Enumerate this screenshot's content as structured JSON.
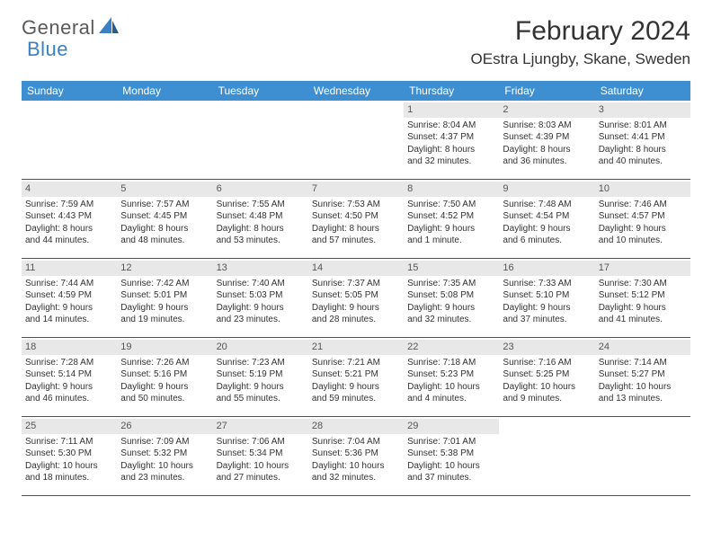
{
  "logo": {
    "text1": "General",
    "text2": "Blue"
  },
  "title": "February 2024",
  "location": "OEstra Ljungby, Skane, Sweden",
  "colors": {
    "header_bg": "#3d8fd1",
    "header_text": "#ffffff",
    "row_border": "#2a5a8a",
    "daynum_bg": "#e8e8e8",
    "body_text": "#333333",
    "logo_gray": "#5a5a5a",
    "logo_blue": "#3b7fc4"
  },
  "weekdays": [
    "Sunday",
    "Monday",
    "Tuesday",
    "Wednesday",
    "Thursday",
    "Friday",
    "Saturday"
  ],
  "weeks": [
    [
      null,
      null,
      null,
      null,
      {
        "n": "1",
        "sr": "Sunrise: 8:04 AM",
        "ss": "Sunset: 4:37 PM",
        "d1": "Daylight: 8 hours",
        "d2": "and 32 minutes."
      },
      {
        "n": "2",
        "sr": "Sunrise: 8:03 AM",
        "ss": "Sunset: 4:39 PM",
        "d1": "Daylight: 8 hours",
        "d2": "and 36 minutes."
      },
      {
        "n": "3",
        "sr": "Sunrise: 8:01 AM",
        "ss": "Sunset: 4:41 PM",
        "d1": "Daylight: 8 hours",
        "d2": "and 40 minutes."
      }
    ],
    [
      {
        "n": "4",
        "sr": "Sunrise: 7:59 AM",
        "ss": "Sunset: 4:43 PM",
        "d1": "Daylight: 8 hours",
        "d2": "and 44 minutes."
      },
      {
        "n": "5",
        "sr": "Sunrise: 7:57 AM",
        "ss": "Sunset: 4:45 PM",
        "d1": "Daylight: 8 hours",
        "d2": "and 48 minutes."
      },
      {
        "n": "6",
        "sr": "Sunrise: 7:55 AM",
        "ss": "Sunset: 4:48 PM",
        "d1": "Daylight: 8 hours",
        "d2": "and 53 minutes."
      },
      {
        "n": "7",
        "sr": "Sunrise: 7:53 AM",
        "ss": "Sunset: 4:50 PM",
        "d1": "Daylight: 8 hours",
        "d2": "and 57 minutes."
      },
      {
        "n": "8",
        "sr": "Sunrise: 7:50 AM",
        "ss": "Sunset: 4:52 PM",
        "d1": "Daylight: 9 hours",
        "d2": "and 1 minute."
      },
      {
        "n": "9",
        "sr": "Sunrise: 7:48 AM",
        "ss": "Sunset: 4:54 PM",
        "d1": "Daylight: 9 hours",
        "d2": "and 6 minutes."
      },
      {
        "n": "10",
        "sr": "Sunrise: 7:46 AM",
        "ss": "Sunset: 4:57 PM",
        "d1": "Daylight: 9 hours",
        "d2": "and 10 minutes."
      }
    ],
    [
      {
        "n": "11",
        "sr": "Sunrise: 7:44 AM",
        "ss": "Sunset: 4:59 PM",
        "d1": "Daylight: 9 hours",
        "d2": "and 14 minutes."
      },
      {
        "n": "12",
        "sr": "Sunrise: 7:42 AM",
        "ss": "Sunset: 5:01 PM",
        "d1": "Daylight: 9 hours",
        "d2": "and 19 minutes."
      },
      {
        "n": "13",
        "sr": "Sunrise: 7:40 AM",
        "ss": "Sunset: 5:03 PM",
        "d1": "Daylight: 9 hours",
        "d2": "and 23 minutes."
      },
      {
        "n": "14",
        "sr": "Sunrise: 7:37 AM",
        "ss": "Sunset: 5:05 PM",
        "d1": "Daylight: 9 hours",
        "d2": "and 28 minutes."
      },
      {
        "n": "15",
        "sr": "Sunrise: 7:35 AM",
        "ss": "Sunset: 5:08 PM",
        "d1": "Daylight: 9 hours",
        "d2": "and 32 minutes."
      },
      {
        "n": "16",
        "sr": "Sunrise: 7:33 AM",
        "ss": "Sunset: 5:10 PM",
        "d1": "Daylight: 9 hours",
        "d2": "and 37 minutes."
      },
      {
        "n": "17",
        "sr": "Sunrise: 7:30 AM",
        "ss": "Sunset: 5:12 PM",
        "d1": "Daylight: 9 hours",
        "d2": "and 41 minutes."
      }
    ],
    [
      {
        "n": "18",
        "sr": "Sunrise: 7:28 AM",
        "ss": "Sunset: 5:14 PM",
        "d1": "Daylight: 9 hours",
        "d2": "and 46 minutes."
      },
      {
        "n": "19",
        "sr": "Sunrise: 7:26 AM",
        "ss": "Sunset: 5:16 PM",
        "d1": "Daylight: 9 hours",
        "d2": "and 50 minutes."
      },
      {
        "n": "20",
        "sr": "Sunrise: 7:23 AM",
        "ss": "Sunset: 5:19 PM",
        "d1": "Daylight: 9 hours",
        "d2": "and 55 minutes."
      },
      {
        "n": "21",
        "sr": "Sunrise: 7:21 AM",
        "ss": "Sunset: 5:21 PM",
        "d1": "Daylight: 9 hours",
        "d2": "and 59 minutes."
      },
      {
        "n": "22",
        "sr": "Sunrise: 7:18 AM",
        "ss": "Sunset: 5:23 PM",
        "d1": "Daylight: 10 hours",
        "d2": "and 4 minutes."
      },
      {
        "n": "23",
        "sr": "Sunrise: 7:16 AM",
        "ss": "Sunset: 5:25 PM",
        "d1": "Daylight: 10 hours",
        "d2": "and 9 minutes."
      },
      {
        "n": "24",
        "sr": "Sunrise: 7:14 AM",
        "ss": "Sunset: 5:27 PM",
        "d1": "Daylight: 10 hours",
        "d2": "and 13 minutes."
      }
    ],
    [
      {
        "n": "25",
        "sr": "Sunrise: 7:11 AM",
        "ss": "Sunset: 5:30 PM",
        "d1": "Daylight: 10 hours",
        "d2": "and 18 minutes."
      },
      {
        "n": "26",
        "sr": "Sunrise: 7:09 AM",
        "ss": "Sunset: 5:32 PM",
        "d1": "Daylight: 10 hours",
        "d2": "and 23 minutes."
      },
      {
        "n": "27",
        "sr": "Sunrise: 7:06 AM",
        "ss": "Sunset: 5:34 PM",
        "d1": "Daylight: 10 hours",
        "d2": "and 27 minutes."
      },
      {
        "n": "28",
        "sr": "Sunrise: 7:04 AM",
        "ss": "Sunset: 5:36 PM",
        "d1": "Daylight: 10 hours",
        "d2": "and 32 minutes."
      },
      {
        "n": "29",
        "sr": "Sunrise: 7:01 AM",
        "ss": "Sunset: 5:38 PM",
        "d1": "Daylight: 10 hours",
        "d2": "and 37 minutes."
      },
      null,
      null
    ]
  ]
}
